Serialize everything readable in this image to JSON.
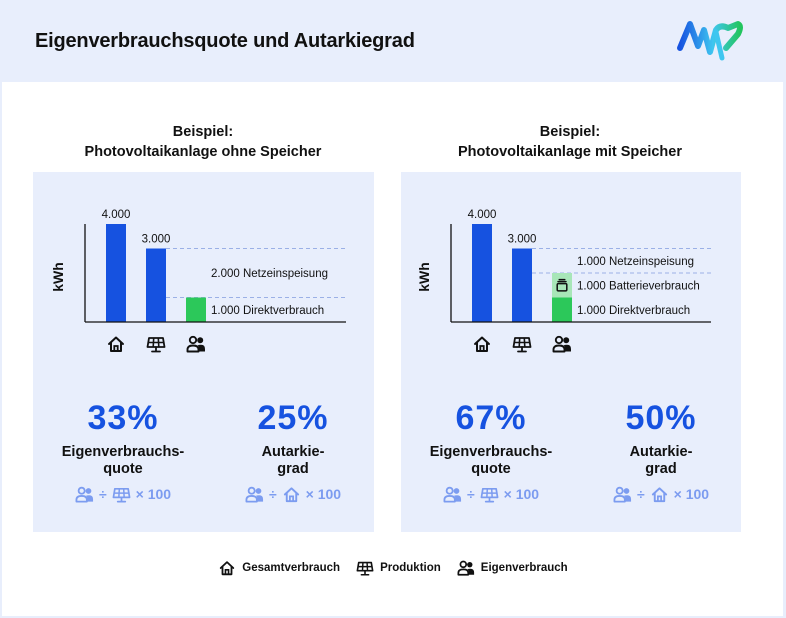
{
  "header": {
    "title": "Eigenverbrauchsquote und Autarkiegrad",
    "logo_icon": "brand-logo-icon",
    "logo_colors": [
      "#1652e0",
      "#3fc6f0",
      "#22c55e"
    ]
  },
  "colors": {
    "bar_blue": "#1652e0",
    "direct_green": "#2cc85a",
    "battery_green": "#a8e6b8",
    "percent_blue": "#1652e0",
    "formula_blue": "#7c9cf0",
    "panel_bg": "#e8eefc"
  },
  "panels": [
    {
      "heading_line1": "Beispiel:",
      "heading_line2": "Photovoltaikanlage ohne Speicher",
      "metrics": [
        {
          "percent": "33%",
          "label_line1": "Eigenverbrauchs-",
          "label_line2": "quote",
          "formula_numerator_icon": "people-icon",
          "formula_divide": "÷",
          "formula_denominator_icon": "solar-panel-icon",
          "formula_multiplier": "× 100"
        },
        {
          "percent": "25%",
          "label_line1": "Autarkie-",
          "label_line2": "grad",
          "formula_numerator_icon": "people-icon",
          "formula_divide": "÷",
          "formula_denominator_icon": "house-icon",
          "formula_multiplier": "× 100"
        }
      ]
    },
    {
      "heading_line1": "Beispiel:",
      "heading_line2": "Photovoltaikanlage mit Speicher",
      "metrics": [
        {
          "percent": "67%",
          "label_line1": "Eigenverbrauchs-",
          "label_line2": "quote",
          "formula_numerator_icon": "people-icon",
          "formula_divide": "÷",
          "formula_denominator_icon": "solar-panel-icon",
          "formula_multiplier": "× 100"
        },
        {
          "percent": "50%",
          "label_line1": "Autarkie-",
          "label_line2": "grad",
          "formula_numerator_icon": "people-icon",
          "formula_divide": "÷",
          "formula_denominator_icon": "house-icon",
          "formula_multiplier": "× 100"
        }
      ]
    }
  ],
  "legend": {
    "items": [
      {
        "icon": "house-icon",
        "label": "Gesamtverbrauch"
      },
      {
        "icon": "solar-panel-icon",
        "label": "Produktion"
      },
      {
        "icon": "people-icon",
        "label": "Eigenverbrauch"
      }
    ]
  },
  "chart_data": [
    {
      "type": "bar",
      "title": "Photovoltaikanlage ohne Speicher",
      "ylabel": "kWh",
      "xlabel": "",
      "ylim": [
        0,
        4000
      ],
      "grid": false,
      "categories": [
        "Gesamtverbrauch",
        "Produktion",
        "Eigenverbrauch"
      ],
      "category_icons": [
        "house-icon",
        "solar-panel-icon",
        "people-icon"
      ],
      "bars": [
        {
          "category": "Gesamtverbrauch",
          "segments": [
            {
              "name": "Gesamtverbrauch",
              "value": 4000,
              "color": "#1652e0"
            }
          ],
          "label": "4.000"
        },
        {
          "category": "Produktion",
          "segments": [
            {
              "name": "Produktion",
              "value": 3000,
              "color": "#1652e0"
            }
          ],
          "label": "3.000"
        },
        {
          "category": "Eigenverbrauch",
          "segments": [
            {
              "name": "Direktverbrauch",
              "value": 1000,
              "color": "#2cc85a"
            }
          ],
          "label": ""
        }
      ],
      "reference_lines": [
        3000,
        1000
      ],
      "annotations": [
        {
          "text": "2.000 Netzeinspeisung",
          "value_low": 1000,
          "value_high": 3000
        },
        {
          "text": "1.000 Direktverbrauch",
          "value_low": 0,
          "value_high": 1000
        }
      ]
    },
    {
      "type": "bar",
      "title": "Photovoltaikanlage mit Speicher",
      "ylabel": "kWh",
      "xlabel": "",
      "ylim": [
        0,
        4000
      ],
      "grid": false,
      "categories": [
        "Gesamtverbrauch",
        "Produktion",
        "Eigenverbrauch"
      ],
      "category_icons": [
        "house-icon",
        "solar-panel-icon",
        "people-icon"
      ],
      "bars": [
        {
          "category": "Gesamtverbrauch",
          "segments": [
            {
              "name": "Gesamtverbrauch",
              "value": 4000,
              "color": "#1652e0"
            }
          ],
          "label": "4.000"
        },
        {
          "category": "Produktion",
          "segments": [
            {
              "name": "Produktion",
              "value": 3000,
              "color": "#1652e0"
            }
          ],
          "label": "3.000"
        },
        {
          "category": "Eigenverbrauch",
          "segments": [
            {
              "name": "Direktverbrauch",
              "value": 1000,
              "color": "#2cc85a"
            },
            {
              "name": "Batterieverbrauch",
              "value": 1000,
              "color": "#a8e6b8",
              "icon": "battery-icon"
            }
          ],
          "label": ""
        }
      ],
      "reference_lines": [
        3000,
        2000
      ],
      "annotations": [
        {
          "text": "1.000 Netzeinspeisung",
          "value_low": 2000,
          "value_high": 3000
        },
        {
          "text": "1.000 Batterieverbrauch",
          "value_low": 1000,
          "value_high": 2000
        },
        {
          "text": "1.000 Direktverbrauch",
          "value_low": 0,
          "value_high": 1000
        }
      ]
    }
  ]
}
